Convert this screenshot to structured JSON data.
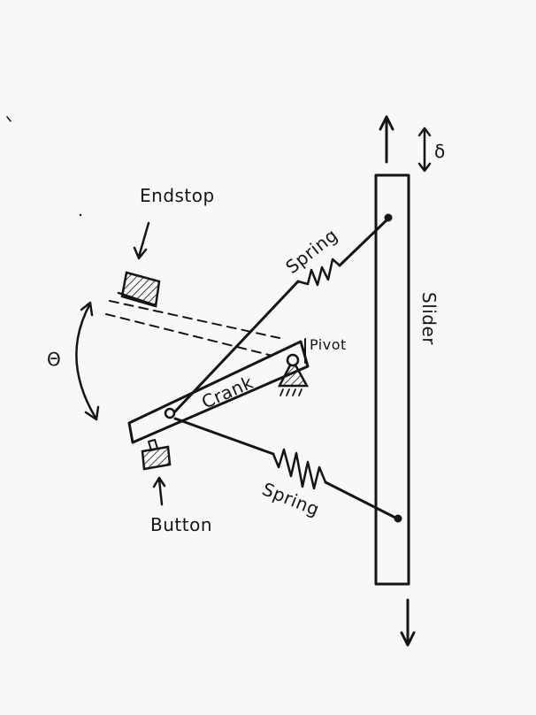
{
  "labels": {
    "endstop": "Endstop",
    "spring_top": "Spring",
    "pivot": "Pivot",
    "crank": "Crank",
    "slider": "Slider",
    "spring_bottom": "Spring",
    "button": "Button",
    "theta": "Θ",
    "delta": "δ"
  },
  "colors": {
    "ink": "#151515",
    "paper": "#f8f8f6"
  },
  "icons": {
    "pivot_ground": "hatched-triangle-pivot",
    "endstop_block": "hatched-block",
    "button_block": "hatched-block"
  }
}
